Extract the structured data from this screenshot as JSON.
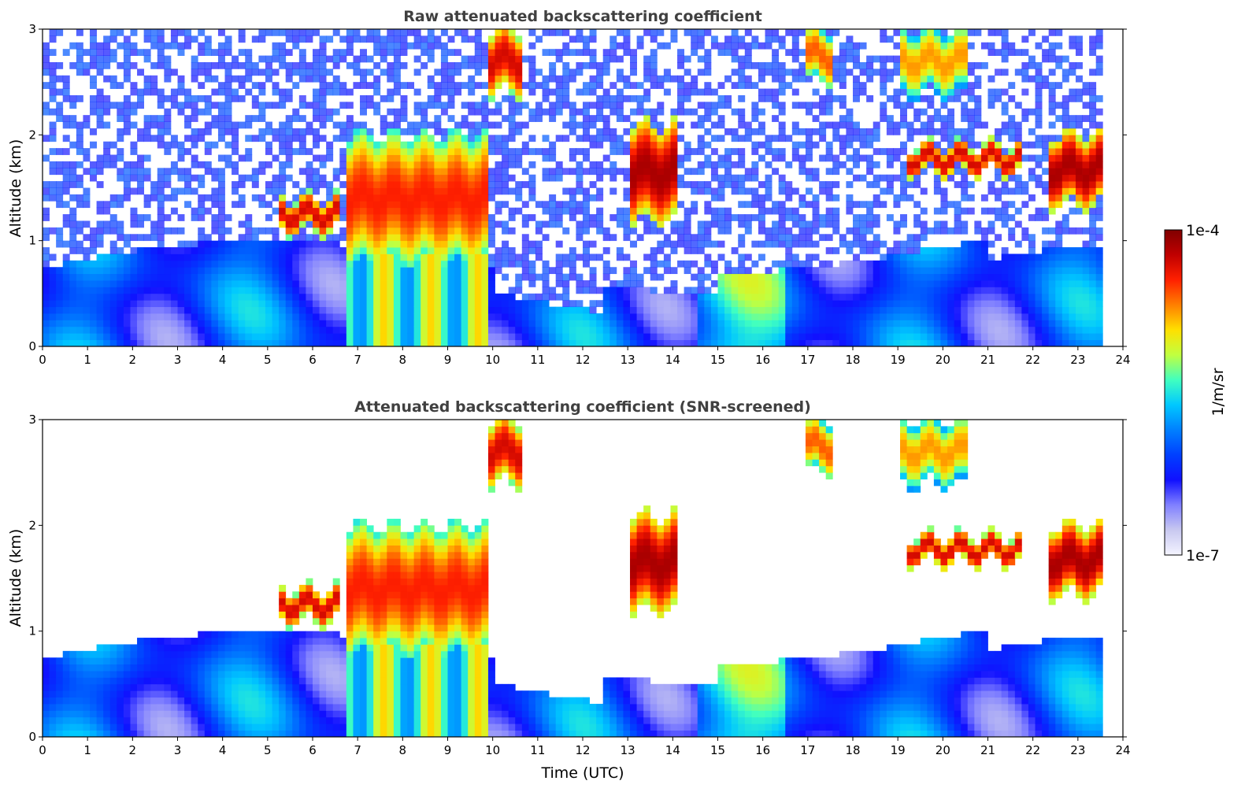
{
  "chart_data": [
    {
      "type": "heatmap",
      "id": "raw",
      "title": "Raw attenuated backscattering coefficient",
      "xlabel": "",
      "ylabel": "Altitude (km)",
      "xlim": [
        0,
        24
      ],
      "ylim": [
        0,
        3
      ],
      "xticks": [
        "0",
        "1",
        "2",
        "3",
        "4",
        "5",
        "6",
        "7",
        "8",
        "9",
        "10",
        "11",
        "12",
        "13",
        "14",
        "15",
        "16",
        "17",
        "18",
        "19",
        "20",
        "21",
        "22",
        "23",
        "24"
      ],
      "yticks": [
        "0",
        "1",
        "2",
        "3"
      ],
      "screened": false
    },
    {
      "type": "heatmap",
      "id": "snr",
      "title": "Attenuated backscattering coefficient (SNR-screened)",
      "xlabel": "Time (UTC)",
      "ylabel": "Altitude (km)",
      "xlim": [
        0,
        24
      ],
      "ylim": [
        0,
        3
      ],
      "xticks": [
        "0",
        "1",
        "2",
        "3",
        "4",
        "5",
        "6",
        "7",
        "8",
        "9",
        "10",
        "11",
        "12",
        "13",
        "14",
        "15",
        "16",
        "17",
        "18",
        "19",
        "20",
        "21",
        "22",
        "23",
        "24"
      ],
      "yticks": [
        "0",
        "1",
        "2",
        "3"
      ],
      "screened": true
    }
  ],
  "colorbar": {
    "label": "1/m/sr",
    "max_label": "1e-4",
    "min_label": "1e-7",
    "colors": [
      "#f4f4ff",
      "#c8c8f0",
      "#8080ff",
      "#1010ff",
      "#0040ff",
      "#0080ff",
      "#00c8ff",
      "#40ffc0",
      "#c0ff40",
      "#ffe000",
      "#ff8000",
      "#ff2000",
      "#c00000",
      "#800000"
    ]
  },
  "data_end_hour": 23.6,
  "features": [
    {
      "name": "boundary-layer",
      "t0": 0,
      "t1": 23.6,
      "kind": "pbl"
    },
    {
      "name": "cloud-layer-5-6.5",
      "t0": 5.2,
      "t1": 6.6,
      "alt": [
        1.1,
        1.4
      ],
      "level": 0.9
    },
    {
      "name": "thick-cloud-6.8-9.9",
      "t0": 6.8,
      "t1": 9.9,
      "alt": [
        0.8,
        2.0
      ],
      "level": 0.85
    },
    {
      "name": "cirrus-10",
      "t0": 9.85,
      "t1": 10.6,
      "alt": [
        2.4,
        3.0
      ],
      "level": 0.9
    },
    {
      "name": "cloud-13",
      "t0": 13.1,
      "t1": 14.1,
      "alt": [
        1.2,
        2.1
      ],
      "level": 0.95
    },
    {
      "name": "cirrus-17",
      "t0": 17.0,
      "t1": 17.6,
      "alt": [
        2.5,
        3.0
      ],
      "level": 0.8
    },
    {
      "name": "cirrus-19-20",
      "t0": 19.0,
      "t1": 20.5,
      "alt": [
        2.4,
        3.0
      ],
      "level": 0.75
    },
    {
      "name": "cloud-19-21",
      "t0": 19.2,
      "t1": 21.8,
      "alt": [
        1.65,
        1.9
      ],
      "level": 0.9
    },
    {
      "name": "cloud-22-23.6",
      "t0": 22.4,
      "t1": 23.6,
      "alt": [
        1.35,
        2.0
      ],
      "level": 0.95
    }
  ]
}
